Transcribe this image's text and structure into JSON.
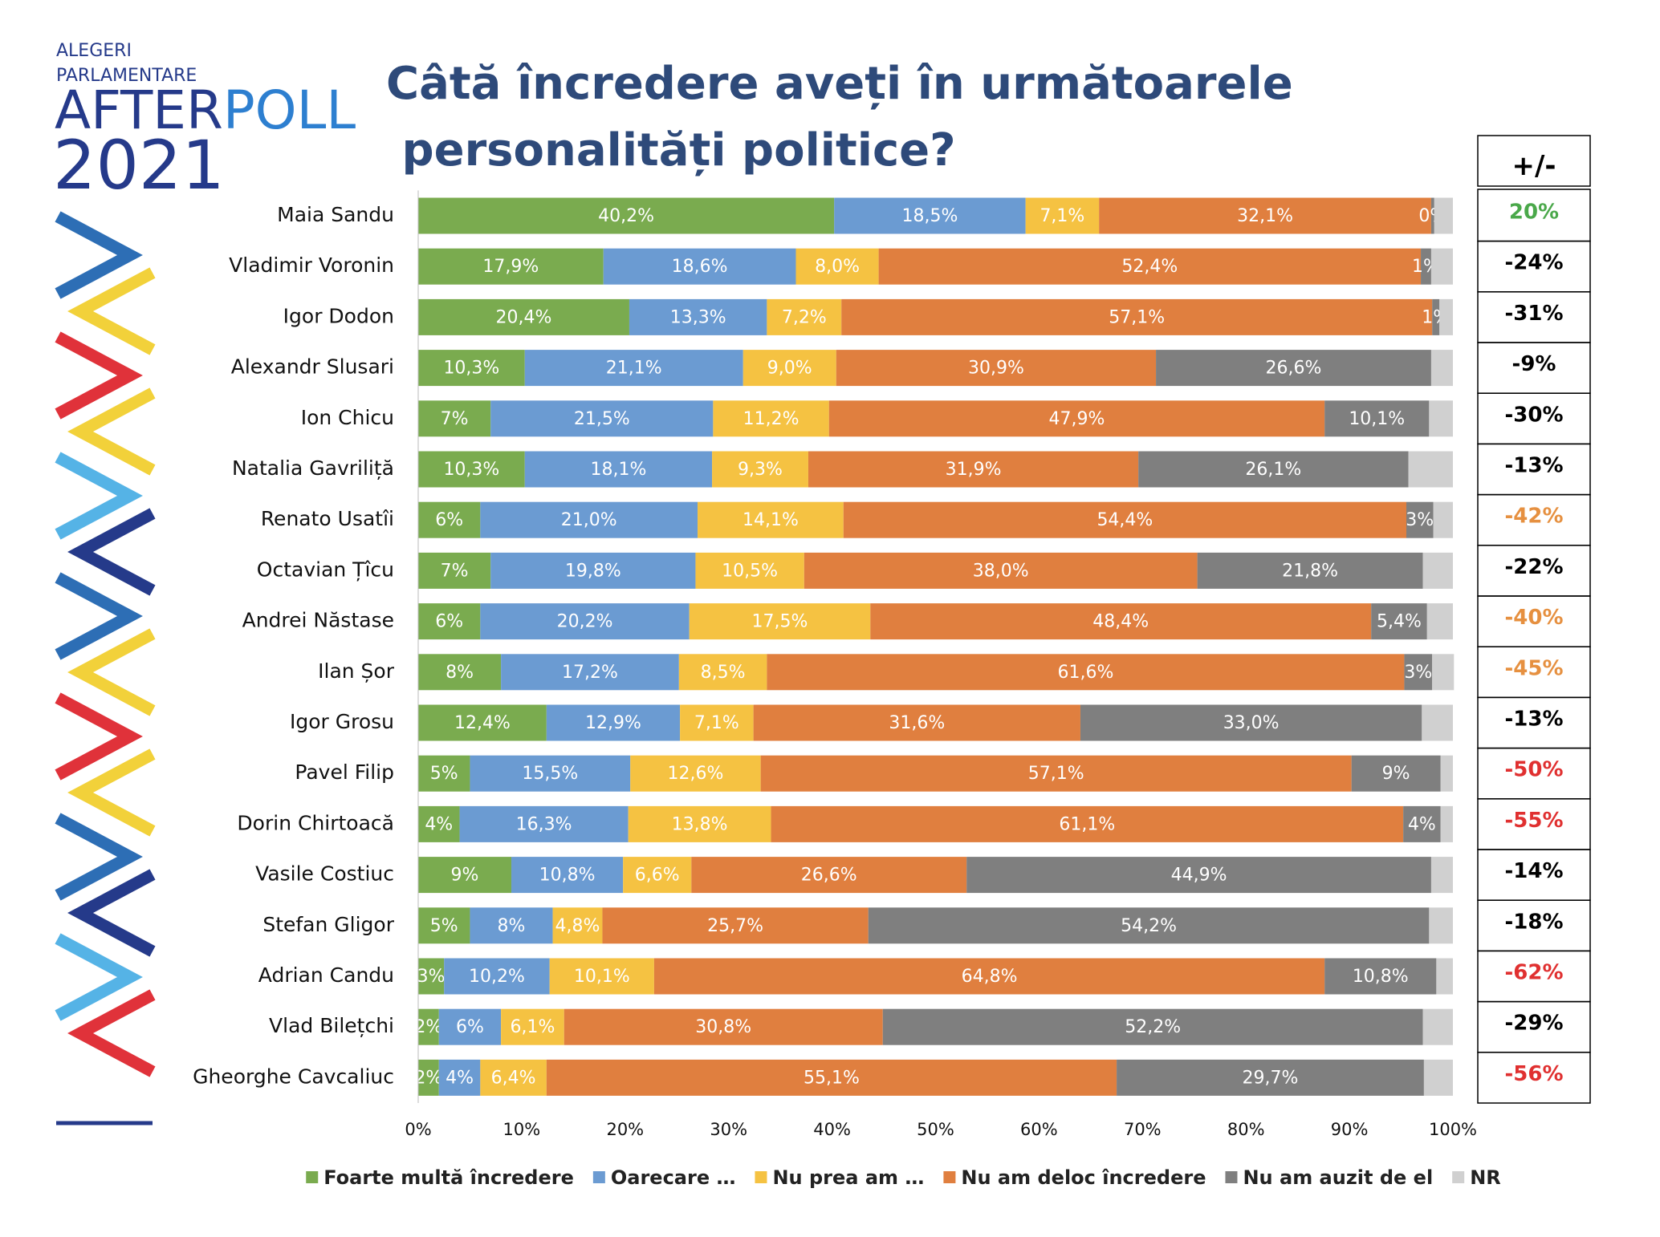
{
  "logo": {
    "line1": "ALEGERI",
    "line2": "PARLAMENTARE",
    "brand_parts": [
      "AFTER",
      "POLL"
    ],
    "year": "2021"
  },
  "chart_data": {
    "type": "stacked-bar-horizontal",
    "title": "Câtă încredere aveți în următoarele personalități politice?",
    "categories": [
      "Maia Sandu",
      "Vladimir Voronin",
      "Igor Dodon",
      "Alexandr Slusari",
      "Ion Chicu",
      "Natalia Gavriliță",
      "Renato Usatîi",
      "Octavian Țîcu",
      "Andrei Năstase",
      "Ilan Șor",
      "Igor Grosu",
      "Pavel Filip",
      "Dorin Chirtoacă",
      "Vasile Costiuc",
      "Stefan Gligor",
      "Adrian Candu",
      "Vlad Bilețchi",
      "Gheorghe Cavcaliuc"
    ],
    "series": [
      {
        "name": "Foarte multă încredere",
        "color": "#7aab4f",
        "values": [
          40.2,
          17.9,
          20.4,
          10.3,
          7,
          10.3,
          6,
          7,
          6,
          8,
          12.4,
          5,
          4,
          9,
          5,
          2.5,
          2,
          2
        ],
        "value_labels": [
          "40,2%",
          "17,9%",
          "20,4%",
          "10,3%",
          "7%",
          "10,3%",
          "6%",
          "7%",
          "6%",
          "8%",
          "12,4%",
          "5%",
          "4%",
          "9%",
          "5%",
          "3%",
          "2%",
          "2%"
        ]
      },
      {
        "name": "Oarecare …",
        "color": "#6b9bd2",
        "values": [
          18.5,
          18.6,
          13.3,
          21.1,
          21.5,
          18.1,
          21.0,
          19.8,
          20.2,
          17.2,
          12.9,
          15.5,
          16.3,
          10.8,
          8,
          10.2,
          6,
          4
        ],
        "value_labels": [
          "18,5%",
          "18,6%",
          "13,3%",
          "21,1%",
          "21,5%",
          "18,1%",
          "21,0%",
          "19,8%",
          "20,2%",
          "17,2%",
          "12,9%",
          "15,5%",
          "16,3%",
          "10,8%",
          "8%",
          "10,2%",
          "6%",
          "4%"
        ]
      },
      {
        "name": "Nu prea am …",
        "color": "#f5c242",
        "values": [
          7.1,
          8.0,
          7.2,
          9.0,
          11.2,
          9.3,
          14.1,
          10.5,
          17.5,
          8.5,
          7.1,
          12.6,
          13.8,
          6.6,
          4.8,
          10.1,
          6.1,
          6.4
        ],
        "value_labels": [
          "7,1%",
          "8,0%",
          "7,2%",
          "9,0%",
          "11,2%",
          "9,3%",
          "14,1%",
          "10,5%",
          "17,5%",
          "8,5%",
          "7,1%",
          "12,6%",
          "13,8%",
          "6,6%",
          "4,8%",
          "10,1%",
          "6,1%",
          "6,4%"
        ]
      },
      {
        "name": "Nu am deloc încredere",
        "color": "#e07f3f",
        "values": [
          32.1,
          52.4,
          57.1,
          30.9,
          47.9,
          31.9,
          54.4,
          38.0,
          48.4,
          61.6,
          31.6,
          57.1,
          61.1,
          26.6,
          25.7,
          64.8,
          30.8,
          55.1
        ],
        "value_labels": [
          "32,1%",
          "52,4%",
          "57,1%",
          "30,9%",
          "47,9%",
          "31,9%",
          "54,4%",
          "38,0%",
          "48,4%",
          "61,6%",
          "31,6%",
          "57,1%",
          "61,1%",
          "26,6%",
          "25,7%",
          "64,8%",
          "30,8%",
          "55,1%"
        ]
      },
      {
        "name": "Nu am auzit de el",
        "color": "#7f7f7f",
        "values": [
          0.3,
          1,
          0.7,
          26.6,
          10.1,
          26.1,
          2.6,
          21.8,
          5.4,
          2.7,
          33.0,
          8.6,
          3.6,
          44.9,
          54.2,
          10.8,
          52.2,
          29.7
        ],
        "value_labels": [
          "0%",
          "1%",
          "1%",
          "26,6%",
          "10,1%",
          "26,1%",
          "3%",
          "21,8%",
          "5,4%",
          "3%",
          "33,0%",
          "9%",
          "4%",
          "44,9%",
          "54,2%",
          "10,8%",
          "52,2%",
          "29,7%"
        ]
      },
      {
        "name": "NR",
        "color": "#d0d0d0",
        "values": [
          1.8,
          2.1,
          1.3,
          2.1,
          2.3,
          4.3,
          1.9,
          2.9,
          2.5,
          2.1,
          3.0,
          1.2,
          1.2,
          2.1,
          2.3,
          1.6,
          2.9,
          2.8
        ]
      }
    ],
    "xlim": [
      0,
      100
    ],
    "xticks": [
      {
        "value": 0,
        "label": "0%"
      },
      {
        "value": 10,
        "label": "10%"
      },
      {
        "value": 20,
        "label": "20%"
      },
      {
        "value": 30,
        "label": "30%"
      },
      {
        "value": 40,
        "label": "40%"
      },
      {
        "value": 50,
        "label": "50%"
      },
      {
        "value": 60,
        "label": "60%"
      },
      {
        "value": 70,
        "label": "70%"
      },
      {
        "value": 80,
        "label": "80%"
      },
      {
        "value": 90,
        "label": "90%"
      },
      {
        "value": 100,
        "label": "100%"
      }
    ],
    "grid": false,
    "legend": "bottom",
    "net_header": "+/-",
    "net_values": [
      20,
      -24,
      -31,
      -9,
      -30,
      -13,
      -42,
      -22,
      -40,
      -45,
      -13,
      -50,
      -55,
      -14,
      -18,
      -62,
      -29,
      -56
    ],
    "net_labels": [
      "20%",
      "-24%",
      "-31%",
      "-9%",
      "-30%",
      "-13%",
      "-42%",
      "-22%",
      "-40%",
      "-45%",
      "-13%",
      "-50%",
      "-55%",
      "-14%",
      "-18%",
      "-62%",
      "-29%",
      "-56%"
    ],
    "net_colors": [
      "#4aa84a",
      "#000000",
      "#000000",
      "#000000",
      "#000000",
      "#000000",
      "#e69040",
      "#000000",
      "#e69040",
      "#e69040",
      "#000000",
      "#e03030",
      "#e03030",
      "#000000",
      "#000000",
      "#e03030",
      "#000000",
      "#e03030"
    ]
  }
}
